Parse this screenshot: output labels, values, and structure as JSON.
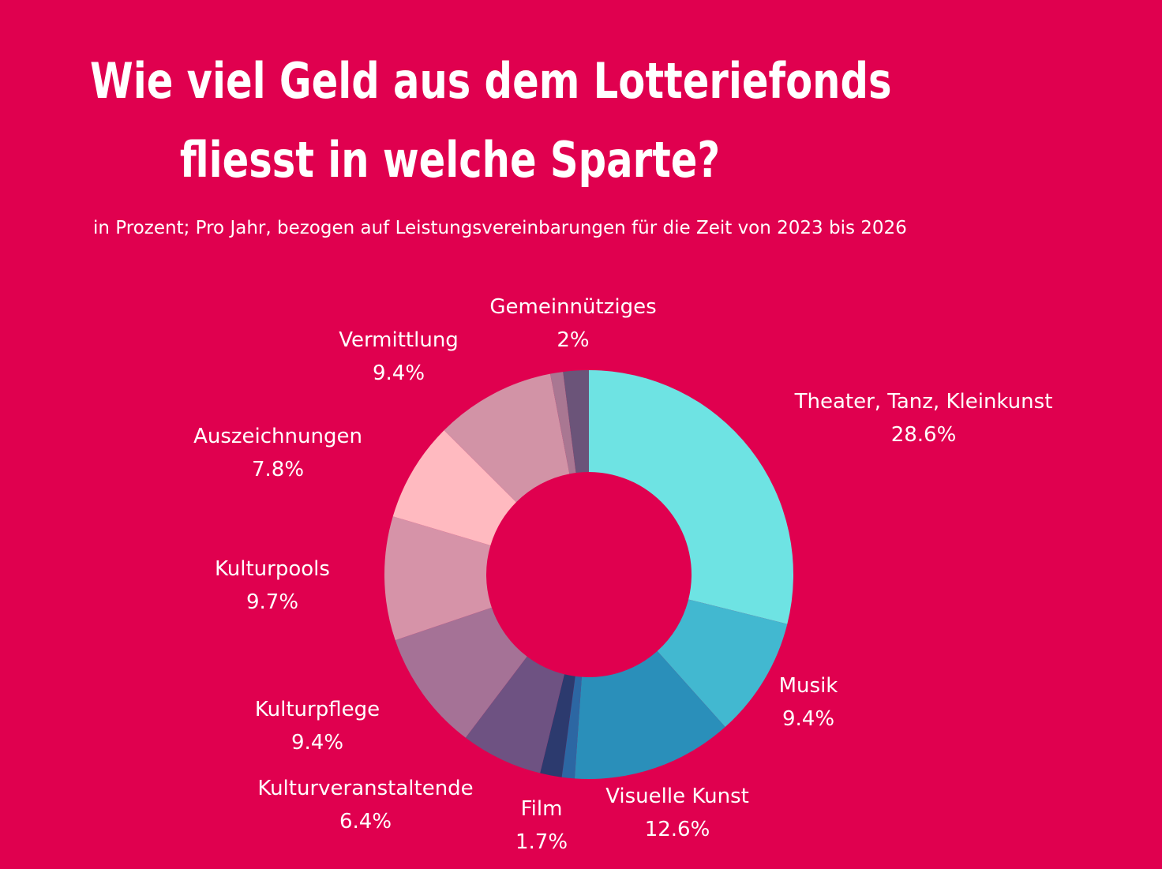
{
  "title_line_1": "Wie viel Geld aus dem Lotteriefonds",
  "title_line_2": "fliesst in welche Sparte?",
  "subtitle": "in Prozent; Pro Jahr, bezogen auf Leistungsvereinbarungen für die Zeit von 2023 bis 2026",
  "colors": {
    "background": "#e0004f"
  },
  "chart_data": {
    "type": "pie",
    "variant": "donut",
    "unit": "%",
    "slices": [
      {
        "label": "Theater, Tanz, Kleinkunst",
        "value": 28.6,
        "value_label": "28.6%",
        "color": "#6ee3e3"
      },
      {
        "label": "Musik",
        "value": 9.4,
        "value_label": "9.4%",
        "color": "#42b8d0"
      },
      {
        "label": "Visuelle Kunst",
        "value": 12.6,
        "value_label": "12.6%",
        "color": "#2a8fba"
      },
      {
        "label": "",
        "value": 1.0,
        "value_label": "",
        "color": "#2c67a3"
      },
      {
        "label": "Film",
        "value": 1.7,
        "value_label": "1.7%",
        "color": "#2c3a6e"
      },
      {
        "label": "Kulturveranstaltende",
        "value": 6.4,
        "value_label": "6.4%",
        "color": "#6e5282"
      },
      {
        "label": "Kulturpflege",
        "value": 9.4,
        "value_label": "9.4%",
        "color": "#a57296"
      },
      {
        "label": "Kulturpools",
        "value": 9.7,
        "value_label": "9.7%",
        "color": "#d693a8"
      },
      {
        "label": "Auszeichnungen",
        "value": 7.8,
        "value_label": "7.8%",
        "color": "#ffbac0"
      },
      {
        "label": "Vermittlung",
        "value": 9.4,
        "value_label": "9.4%",
        "color": "#d293a6"
      },
      {
        "label": "",
        "value": 1.0,
        "value_label": "",
        "color": "#a97792"
      },
      {
        "label": "Gemeinnütziges",
        "value": 2.0,
        "value_label": "2%",
        "color": "#6b5479"
      }
    ]
  }
}
